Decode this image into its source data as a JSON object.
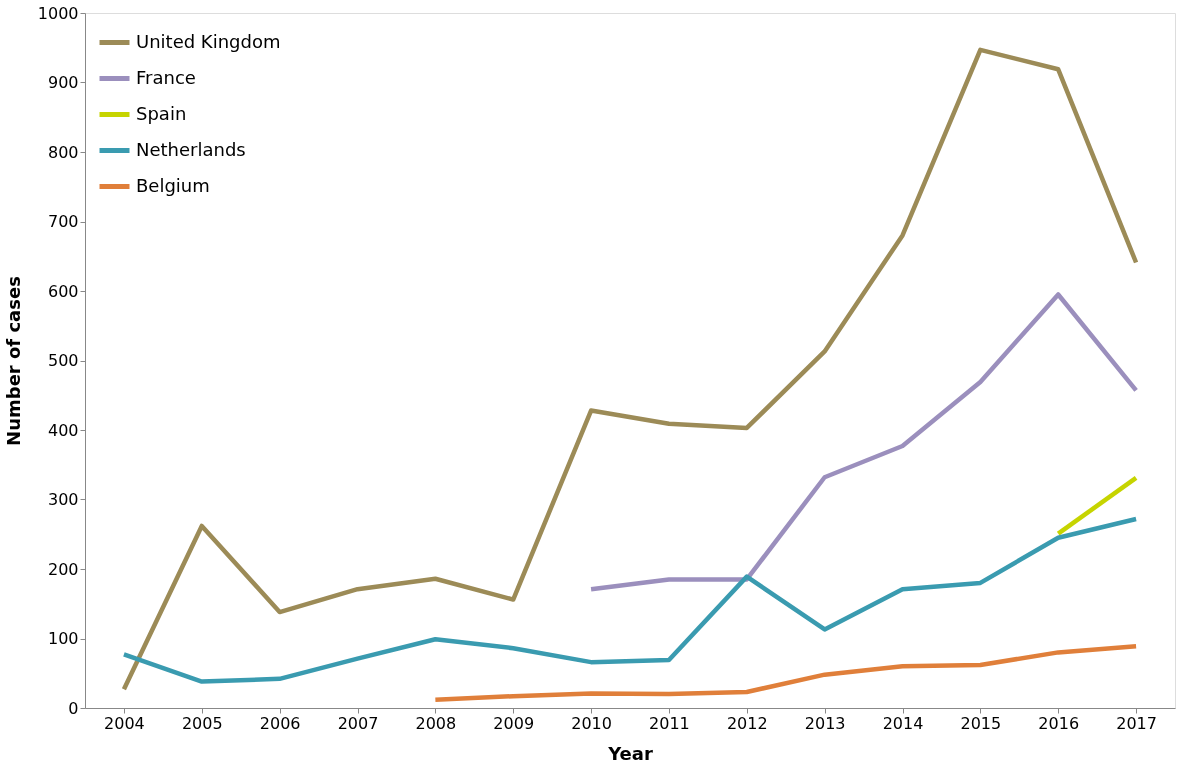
{
  "chart_data": {
    "type": "line",
    "xlabel": "Year",
    "ylabel": "Number of cases",
    "categories": [
      "2004",
      "2005",
      "2006",
      "2007",
      "2008",
      "2009",
      "2010",
      "2011",
      "2012",
      "2013",
      "2014",
      "2015",
      "2016",
      "2017"
    ],
    "ylim": [
      0,
      1000
    ],
    "yticks": [
      0,
      100,
      200,
      300,
      400,
      500,
      600,
      700,
      800,
      900,
      1000
    ],
    "grid": false,
    "legend": "top left",
    "marker": "none",
    "line_style": "solid",
    "series": [
      {
        "name": "United Kingdom",
        "color": "#9c8b57",
        "values": [
          27,
          262,
          138,
          171,
          186,
          156,
          428,
          409,
          403,
          513,
          680,
          947,
          919,
          641
        ]
      },
      {
        "name": "France",
        "color": "#9b8fbd",
        "values": [
          null,
          null,
          null,
          null,
          null,
          null,
          171,
          185,
          185,
          332,
          377,
          469,
          595,
          457
        ]
      },
      {
        "name": "Spain",
        "color": "#c6d400",
        "values": [
          null,
          null,
          null,
          null,
          null,
          null,
          null,
          null,
          null,
          null,
          null,
          null,
          251,
          331
        ]
      },
      {
        "name": "Netherlands",
        "color": "#3a9bb0",
        "values": [
          77,
          38,
          42,
          71,
          99,
          86,
          66,
          69,
          189,
          113,
          171,
          180,
          245,
          272
        ]
      },
      {
        "name": "Belgium",
        "color": "#e07f3a",
        "values": [
          null,
          null,
          null,
          null,
          12,
          17,
          21,
          20,
          23,
          48,
          60,
          62,
          80,
          89
        ]
      }
    ]
  }
}
